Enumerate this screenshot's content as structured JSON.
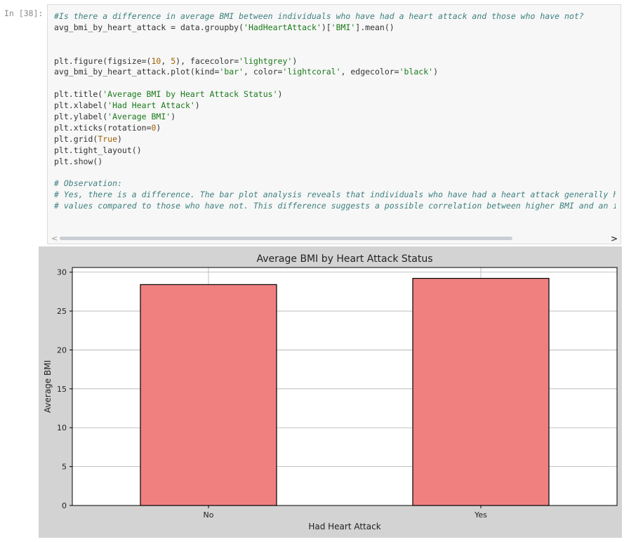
{
  "cell": {
    "prompt": "In [38]:",
    "code_lines": [
      [
        {
          "t": "#Is there a difference in average BMI between individuals who have had a heart attack and those who have not?",
          "c": "comment"
        }
      ],
      [
        {
          "t": "avg_bmi_by_heart_attack = data.groupby(",
          "c": ""
        },
        {
          "t": "'HadHeartAttack'",
          "c": "str"
        },
        {
          "t": ")[",
          "c": ""
        },
        {
          "t": "'BMI'",
          "c": "str"
        },
        {
          "t": "].mean()",
          "c": ""
        }
      ],
      [],
      [],
      [
        {
          "t": "plt.figure(figsize=(",
          "c": ""
        },
        {
          "t": "10",
          "c": "num"
        },
        {
          "t": ", ",
          "c": ""
        },
        {
          "t": "5",
          "c": "num"
        },
        {
          "t": "), facecolor=",
          "c": ""
        },
        {
          "t": "'lightgrey'",
          "c": "str"
        },
        {
          "t": ")",
          "c": ""
        }
      ],
      [
        {
          "t": "avg_bmi_by_heart_attack.plot(kind=",
          "c": ""
        },
        {
          "t": "'bar'",
          "c": "str"
        },
        {
          "t": ", color=",
          "c": ""
        },
        {
          "t": "'lightcoral'",
          "c": "str"
        },
        {
          "t": ", edgecolor=",
          "c": ""
        },
        {
          "t": "'black'",
          "c": "str"
        },
        {
          "t": ")",
          "c": ""
        }
      ],
      [],
      [
        {
          "t": "plt.title(",
          "c": ""
        },
        {
          "t": "'Average BMI by Heart Attack Status'",
          "c": "str"
        },
        {
          "t": ")",
          "c": ""
        }
      ],
      [
        {
          "t": "plt.xlabel(",
          "c": ""
        },
        {
          "t": "'Had Heart Attack'",
          "c": "str"
        },
        {
          "t": ")",
          "c": ""
        }
      ],
      [
        {
          "t": "plt.ylabel(",
          "c": ""
        },
        {
          "t": "'Average BMI'",
          "c": "str"
        },
        {
          "t": ")",
          "c": ""
        }
      ],
      [
        {
          "t": "plt.xticks(rotation=",
          "c": ""
        },
        {
          "t": "0",
          "c": "num"
        },
        {
          "t": ")",
          "c": ""
        }
      ],
      [
        {
          "t": "plt.grid(",
          "c": ""
        },
        {
          "t": "True",
          "c": "kw"
        },
        {
          "t": ")",
          "c": ""
        }
      ],
      [
        {
          "t": "plt.tight_layout()",
          "c": ""
        }
      ],
      [
        {
          "t": "plt.show()",
          "c": ""
        }
      ],
      [],
      [
        {
          "t": "# Observation:",
          "c": "comment"
        }
      ],
      [
        {
          "t": "# Yes, there is a difference. The bar plot analysis reveals that individuals who have had a heart attack generally have h",
          "c": "comment"
        }
      ],
      [
        {
          "t": "# values compared to those who have not. This difference suggests a possible correlation between higher BMI and an incre",
          "c": "comment"
        }
      ]
    ],
    "scroll_left_icon": "chevron-left-icon",
    "scroll_right_icon": "chevron-right-icon",
    "scroll_left_glyph": "<",
    "scroll_right_glyph": ">"
  },
  "chart_data": {
    "type": "bar",
    "title": "Average BMI by Heart Attack Status",
    "xlabel": "Had Heart Attack",
    "ylabel": "Average BMI",
    "categories": [
      "No",
      "Yes"
    ],
    "values": [
      28.4,
      29.2
    ],
    "ylim": [
      0,
      30.6
    ],
    "yticks": [
      0,
      5,
      10,
      15,
      20,
      25,
      30
    ],
    "grid": true,
    "bar_color": "#f08080",
    "edge_color": "#000000",
    "face_color": "#d3d3d3"
  }
}
